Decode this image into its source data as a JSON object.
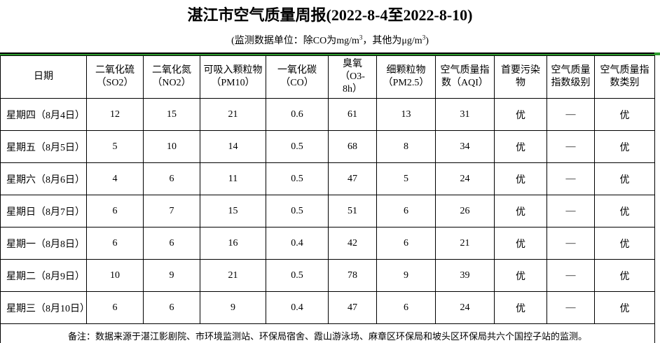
{
  "page": {
    "title": "湛江市空气质量周报(2022-8-4至2022-8-10)",
    "subtitle": {
      "pre": "(监测数据单位：除CO为mg/m",
      "sup1": "3",
      "mid": "，其他为μg/m",
      "sup2": "3",
      "post": ")"
    }
  },
  "colors": {
    "accent_green": "#2e9b2e",
    "border_black": "#000000"
  },
  "table": {
    "columns": [
      {
        "label": "日期"
      },
      {
        "label": "二氧化硫\n（SO2）"
      },
      {
        "label": "二氧化氮\n（NO2）"
      },
      {
        "label": "可吸入颗粒物\n（PM10）"
      },
      {
        "label": "一氧化碳\n（CO）"
      },
      {
        "label": "臭氧\n（O3-\n8h）"
      },
      {
        "label": "细颗粒物\n（PM2.5）"
      },
      {
        "label": "空气质量指\n数（AQI）"
      },
      {
        "label": "首要污染\n物"
      },
      {
        "label": "空气质量\n指数级别"
      },
      {
        "label": "空气质量指\n数类别"
      }
    ],
    "rows": [
      {
        "date": "星期四（8月4日）",
        "values": [
          "12",
          "15",
          "21",
          "0.6",
          "61",
          "13",
          "31",
          "优",
          "—",
          "优"
        ]
      },
      {
        "date": "星期五（8月5日）",
        "values": [
          "5",
          "10",
          "14",
          "0.5",
          "68",
          "8",
          "34",
          "优",
          "—",
          "优"
        ]
      },
      {
        "date": "星期六（8月6日）",
        "values": [
          "4",
          "6",
          "11",
          "0.5",
          "47",
          "5",
          "24",
          "优",
          "—",
          "优"
        ]
      },
      {
        "date": "星期日（8月7日）",
        "values": [
          "6",
          "7",
          "15",
          "0.5",
          "51",
          "6",
          "26",
          "优",
          "—",
          "优"
        ]
      },
      {
        "date": "星期一（8月8日）",
        "values": [
          "6",
          "6",
          "16",
          "0.4",
          "42",
          "6",
          "21",
          "优",
          "—",
          "优"
        ]
      },
      {
        "date": "星期二（8月9日）",
        "values": [
          "10",
          "9",
          "21",
          "0.5",
          "78",
          "9",
          "39",
          "优",
          "—",
          "优"
        ]
      },
      {
        "date": "星期三（8月10日）",
        "values": [
          "6",
          "6",
          "9",
          "0.4",
          "47",
          "6",
          "24",
          "优",
          "—",
          "优"
        ]
      }
    ],
    "remark_label": "备注：",
    "remark_text": "数据来源于湛江影剧院、市环境监测站、环保局宿舍、霞山游泳场、麻章区环保局和坡头区环保局共六个国控子站的监测。"
  }
}
